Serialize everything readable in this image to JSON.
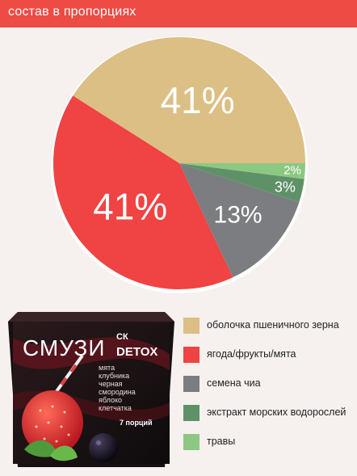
{
  "header": {
    "title": "состав в пропорциях"
  },
  "colors": {
    "header_bg": "#ed4b43",
    "background": "#f6f0ee"
  },
  "chart_data": {
    "type": "pie",
    "title": "состав в пропорциях",
    "legend_position": "bottom-right",
    "slices": [
      {
        "label": "оболочка пшеничного зерна",
        "value": 41,
        "display": "41%",
        "color": "#dcbf85"
      },
      {
        "label": "ягода/фрукты/мята",
        "value": 41,
        "display": "41%",
        "color": "#f04343"
      },
      {
        "label": "семена чиа",
        "value": 13,
        "display": "13%",
        "color": "#7b7d81"
      },
      {
        "label": "экстракт морских водорослей",
        "value": 3,
        "display": "3%",
        "color": "#5f9169"
      },
      {
        "label": "травы",
        "value": 2,
        "display": "2%",
        "color": "#8cc882"
      }
    ]
  },
  "product": {
    "brand_text": "СМУЗИ",
    "logo_text": "СК",
    "detox_text": "DETOX",
    "ingredients": [
      "мята",
      "клубника",
      "черная",
      "смородина",
      "яблоко",
      "клетчатка"
    ],
    "portions": "7 порций"
  }
}
